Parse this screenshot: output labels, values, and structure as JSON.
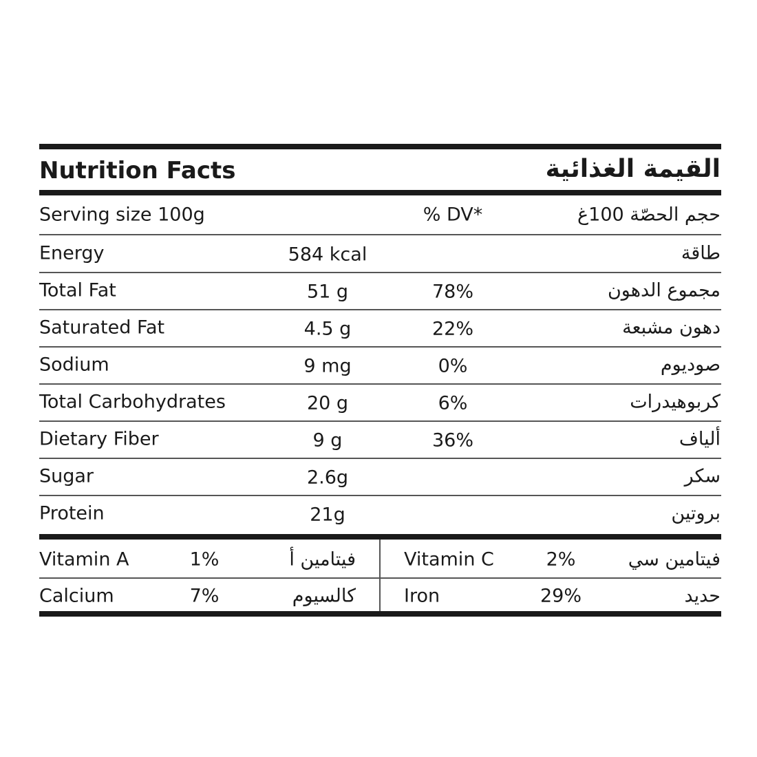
{
  "header": {
    "title": "Nutrition Facts",
    "title_ar": "القيمة الغذائية"
  },
  "serving": {
    "label": "Serving size 100g",
    "dv_header": "% DV*",
    "label_ar": "حجم الحصّة 100غ"
  },
  "rows": [
    {
      "name": "Energy",
      "amount": "584 kcal",
      "name_ar": "طاقة"
    },
    {
      "name": "Total Fat",
      "amount": "51 g",
      "dv": "78%",
      "name_ar": "مجموع الدهون"
    },
    {
      "name": "Saturated Fat",
      "amount": "4.5 g",
      "dv": "22%",
      "name_ar": "دهون مشبعة"
    },
    {
      "name": "Sodium",
      "amount": "9 mg",
      "dv": "0%",
      "name_ar": "صوديوم"
    },
    {
      "name": "Total Carbohydrates",
      "amount": "20 g",
      "dv": "6%",
      "name_ar": "كربوهيدرات"
    },
    {
      "name": "Dietary Fiber",
      "amount": "9 g",
      "dv": "36%",
      "name_ar": "ألياف"
    },
    {
      "name": "Sugar",
      "amount": "2.6g",
      "name_ar": "سكر"
    },
    {
      "name": "Protein",
      "amount": "21g",
      "name_ar": "بروتين"
    }
  ],
  "vitamins": [
    {
      "name": "Vitamin A",
      "value": "1%",
      "name_ar": "فيتامين أ"
    },
    {
      "name": "Vitamin C",
      "value": "2%",
      "name_ar": "فيتامين سي"
    },
    {
      "name": "Calcium",
      "value": "7%",
      "name_ar": "كالسيوم"
    },
    {
      "name": "Iron",
      "value": "29%",
      "name_ar": "حديد"
    }
  ]
}
